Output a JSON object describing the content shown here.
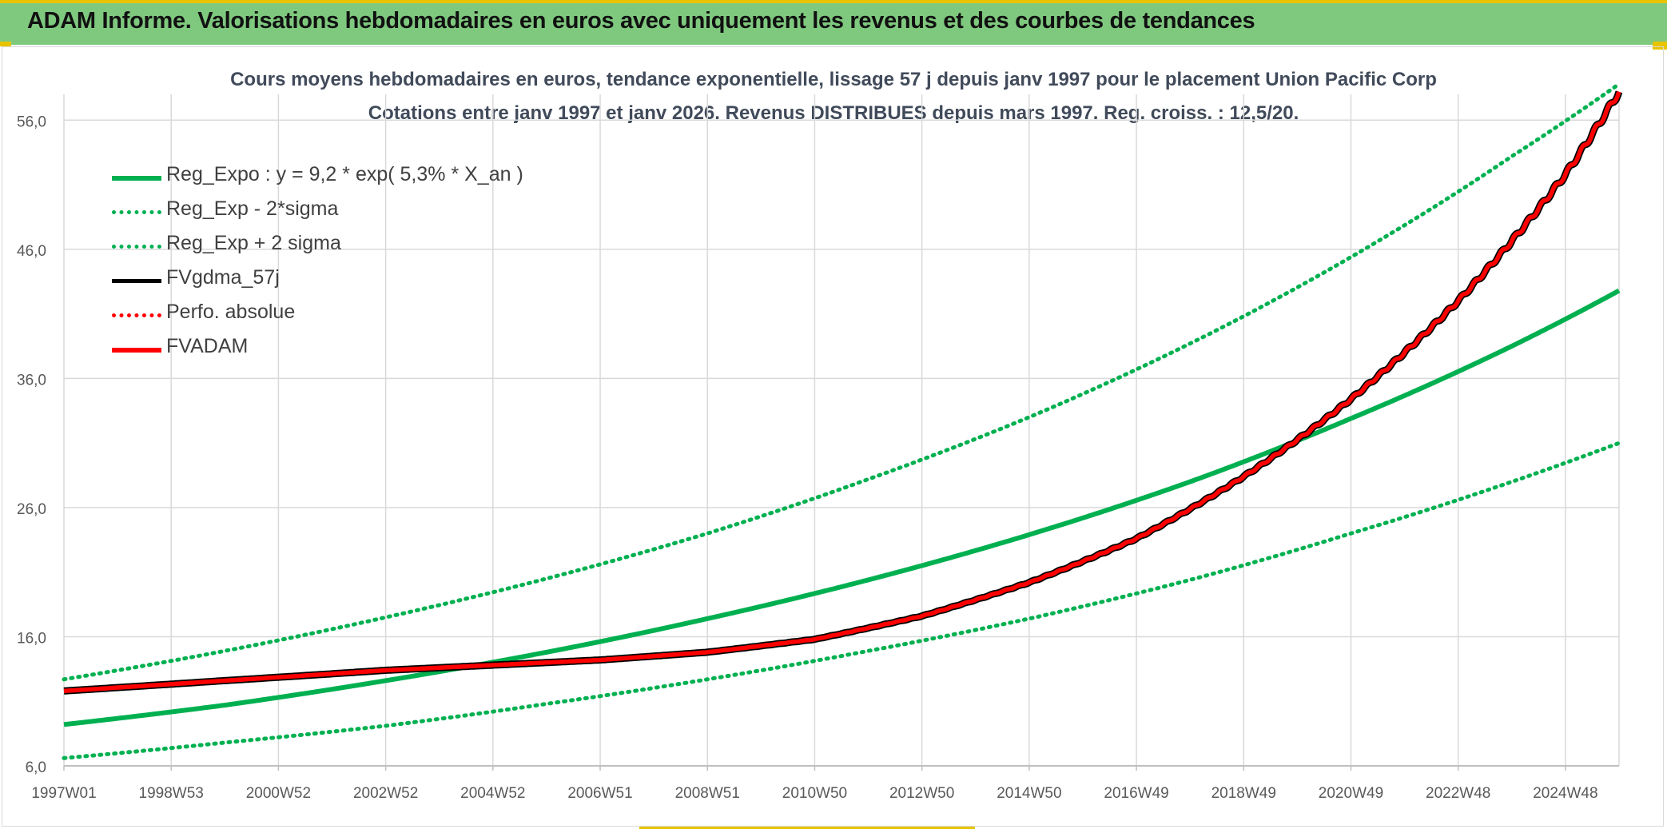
{
  "header": {
    "title": "ADAM Informe. Valorisations hebdomadaires en euros avec uniquement les revenus et des courbes de tendances"
  },
  "colors": {
    "banner": "#7fc97f",
    "green": "#00b050",
    "red": "#ff0000",
    "black": "#000000",
    "grid": "#d9d9d9",
    "axis_text": "#595959"
  },
  "chart_data": {
    "type": "line",
    "title_line1": "Cours moyens hebdomadaires en euros, tendance exponentielle, lissage 57 j depuis janv 1997 pour le placement Union Pacific Corp",
    "title_line2": "Cotations entre janv 1997 et janv 2026. Revenus DISTRIBUES depuis mars 1997. Reg. croiss. : 12,5/20.",
    "xlabel": "",
    "ylabel": "",
    "ylim": [
      6,
      58
    ],
    "yticks": [
      "6,0",
      "16,0",
      "26,0",
      "36,0",
      "46,0",
      "56,0"
    ],
    "ytick_values": [
      6,
      16,
      26,
      36,
      46,
      56
    ],
    "xticks": [
      "1997W01",
      "1998W53",
      "2000W52",
      "2002W52",
      "2004W52",
      "2006W51",
      "2008W51",
      "2010W50",
      "2012W50",
      "2014W50",
      "2016W49",
      "2018W49",
      "2020W49",
      "2022W48",
      "2024W48"
    ],
    "x_range_years": [
      1997.0,
      2026.0
    ],
    "grid": true,
    "legend_position": "top-left",
    "legend": [
      {
        "label": "Reg_Expo : y = 9,2 * exp( 5,3% *  X_an )",
        "color": "#00b050",
        "style": "solid-thick"
      },
      {
        "label": "Reg_Exp - 2*sigma",
        "color": "#00b050",
        "style": "dotted"
      },
      {
        "label": "Reg_Exp + 2 sigma",
        "color": "#00b050",
        "style": "dotted"
      },
      {
        "label": "FVgdma_57j",
        "color": "#000000",
        "style": "solid"
      },
      {
        "label": "Perfo. absolue",
        "color": "#ff0000",
        "style": "dotted"
      },
      {
        "label": "FVADAM",
        "color": "#ff0000",
        "style": "solid-thick"
      }
    ],
    "series": [
      {
        "name": "Reg_Expo : y = 9,2 * exp( 5,3% *  X_an )",
        "x": [
          1997,
          2000,
          2003,
          2006,
          2009,
          2012,
          2015,
          2018,
          2021,
          2024,
          2026
        ],
        "values": [
          9.2,
          10.7,
          12.6,
          14.8,
          17.4,
          20.4,
          23.9,
          28.0,
          32.9,
          38.5,
          42.8
        ]
      },
      {
        "name": "Reg_Exp - 2*sigma",
        "x": [
          1997,
          2000,
          2003,
          2006,
          2009,
          2012,
          2015,
          2018,
          2021,
          2024,
          2026
        ],
        "values": [
          6.6,
          7.8,
          9.1,
          10.8,
          12.7,
          14.9,
          17.4,
          20.4,
          24.0,
          28.0,
          31.0
        ]
      },
      {
        "name": "Reg_Exp + 2 sigma",
        "x": [
          1997,
          2000,
          2003,
          2006,
          2009,
          2012,
          2015,
          2018,
          2021,
          2024,
          2026
        ],
        "values": [
          12.7,
          14.9,
          17.5,
          20.5,
          24.0,
          28.2,
          33.0,
          38.7,
          45.4,
          53.2,
          58.8
        ]
      },
      {
        "name": "FVgdma_57j",
        "x": [
          1997,
          2000,
          2003,
          2005,
          2007,
          2009,
          2011,
          2013,
          2015,
          2017,
          2019,
          2021,
          2023,
          2025,
          2026
        ],
        "values": [
          11.8,
          12.6,
          13.4,
          13.8,
          14.2,
          14.8,
          15.8,
          17.6,
          20.2,
          23.6,
          28.4,
          34.4,
          42.0,
          51.8,
          58.2
        ]
      },
      {
        "name": "Perfo. absolue",
        "x": [
          1997,
          2000,
          2003,
          2005,
          2007,
          2009,
          2011,
          2013,
          2015,
          2017,
          2019,
          2021,
          2023,
          2025,
          2026
        ],
        "values": [
          11.8,
          12.6,
          13.4,
          13.8,
          14.2,
          14.8,
          15.8,
          17.6,
          20.2,
          23.6,
          28.4,
          34.4,
          42.0,
          51.8,
          58.2
        ]
      },
      {
        "name": "FVADAM",
        "x": [
          1997,
          2000,
          2003,
          2005,
          2007,
          2009,
          2011,
          2013,
          2015,
          2017,
          2019,
          2021,
          2023,
          2025,
          2026
        ],
        "values": [
          11.8,
          12.6,
          13.4,
          13.8,
          14.2,
          14.8,
          15.8,
          17.6,
          20.2,
          23.6,
          28.4,
          34.4,
          42.0,
          51.8,
          58.2
        ]
      }
    ]
  }
}
